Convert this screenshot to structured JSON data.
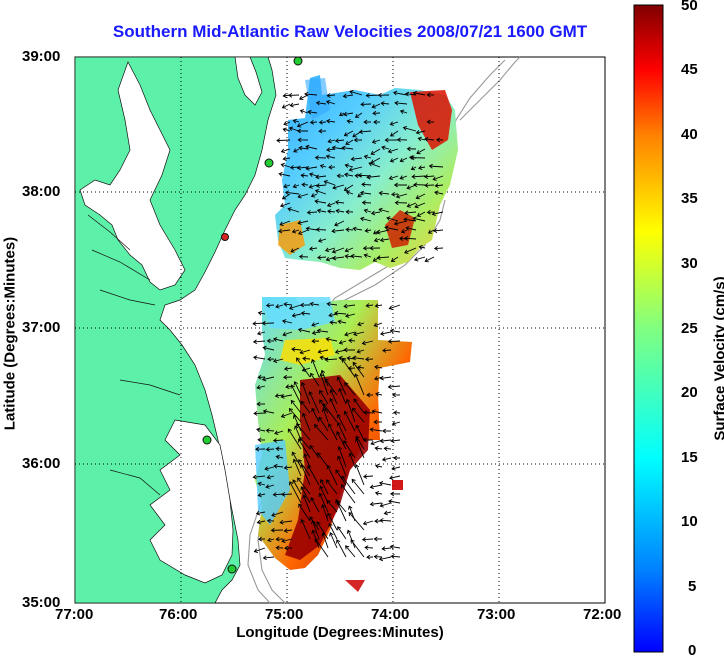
{
  "title": "Southern Mid-Atlantic Raw Velocities 2008/07/21 1600 GMT",
  "axes": {
    "xlabel": "Longitude (Degrees:Minutes)",
    "ylabel": "Latitude (Degrees:Minutes)",
    "x_ticks": [
      "77:00",
      "76:00",
      "75:00",
      "74:00",
      "73:00",
      "72:00"
    ],
    "y_ticks": [
      "39:00",
      "38:00",
      "37:00",
      "36:00",
      "35:00"
    ],
    "grid": "dotted"
  },
  "colorbar": {
    "label": "Surface Velocity (cm/s)",
    "ticks": [
      "50",
      "45",
      "40",
      "35",
      "30",
      "25",
      "20",
      "15",
      "10",
      "5",
      "0"
    ],
    "range": [
      0,
      50
    ]
  },
  "colors": {
    "land": "#5df0a8",
    "title": "#1a1aff",
    "station_green": "#22cc33",
    "station_red": "#dd2222"
  }
}
